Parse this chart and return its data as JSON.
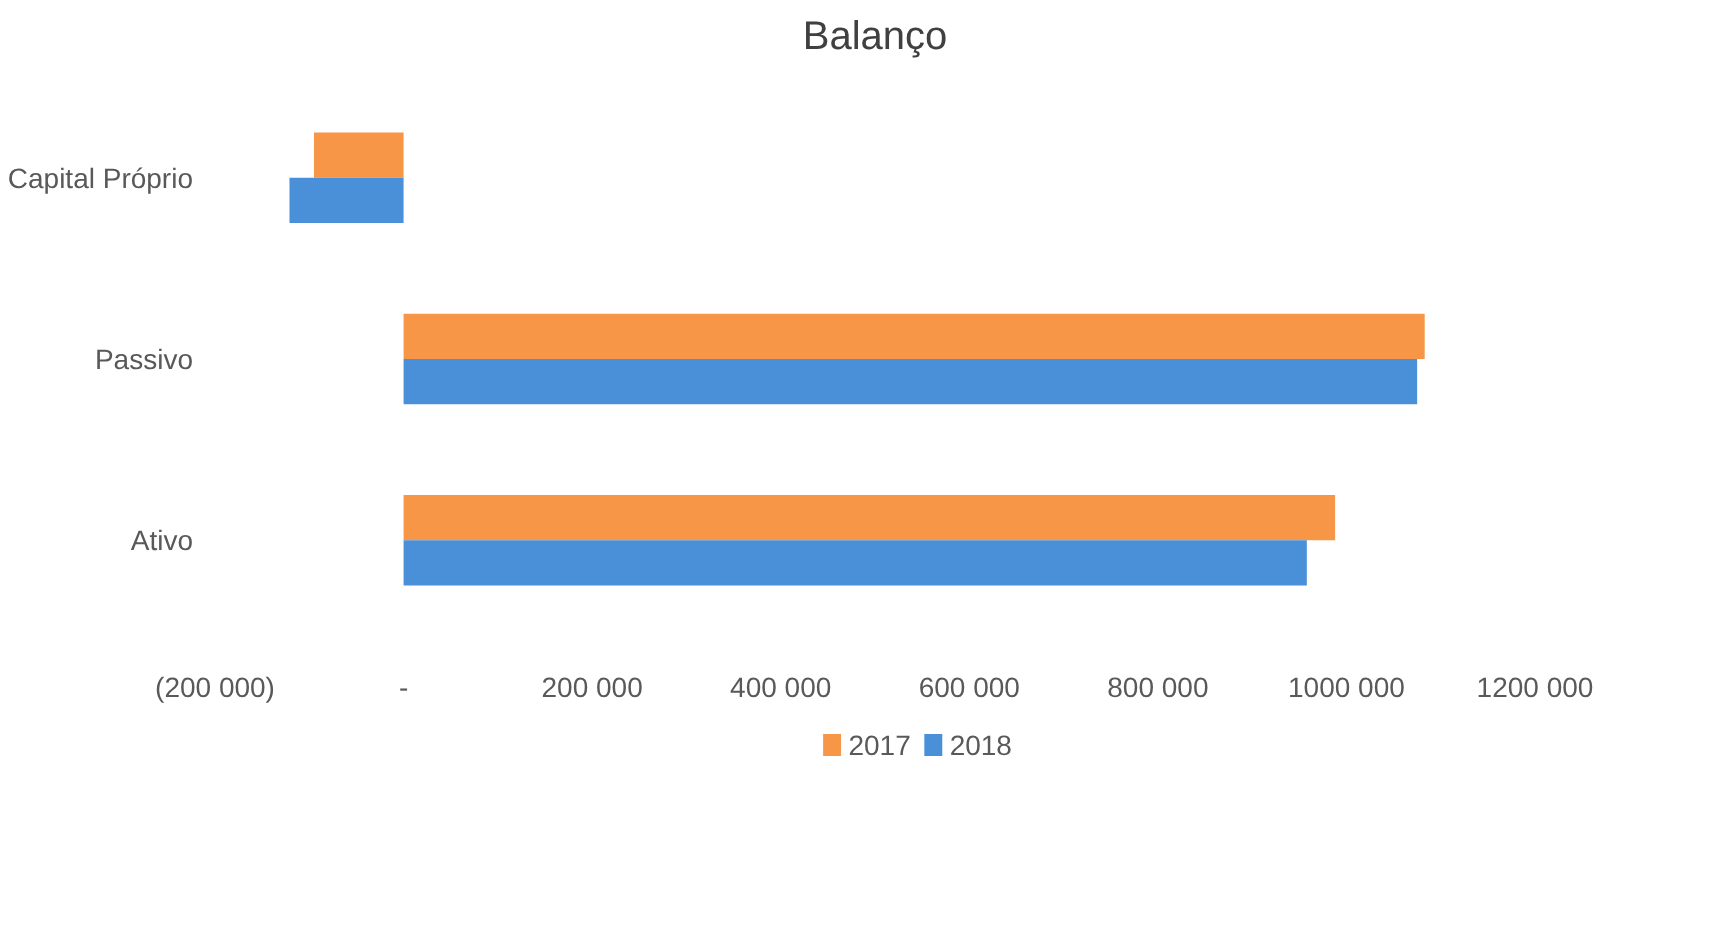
{
  "chart_data": {
    "type": "bar",
    "orientation": "horizontal",
    "title": "Balanço",
    "categories": [
      "Capital Próprio",
      "Passivo",
      "Ativo"
    ],
    "series": [
      {
        "name": "2017",
        "color": "#f79646",
        "values": [
          -95000,
          1083000,
          988000
        ]
      },
      {
        "name": "2018",
        "color": "#4a90d9",
        "values": [
          -121000,
          1075000,
          958000
        ]
      }
    ],
    "xlim": [
      -200000,
      1200000
    ],
    "xticks": [
      {
        "value": -200000,
        "label": "(200 000)"
      },
      {
        "value": 0,
        "label": "-"
      },
      {
        "value": 200000,
        "label": "200 000"
      },
      {
        "value": 400000,
        "label": "400 000"
      },
      {
        "value": 600000,
        "label": "600 000"
      },
      {
        "value": 800000,
        "label": "800 000"
      },
      {
        "value": 1000000,
        "label": "1000 000"
      },
      {
        "value": 1200000,
        "label": "1200 000"
      }
    ],
    "grid": false,
    "legend": "bottom"
  }
}
